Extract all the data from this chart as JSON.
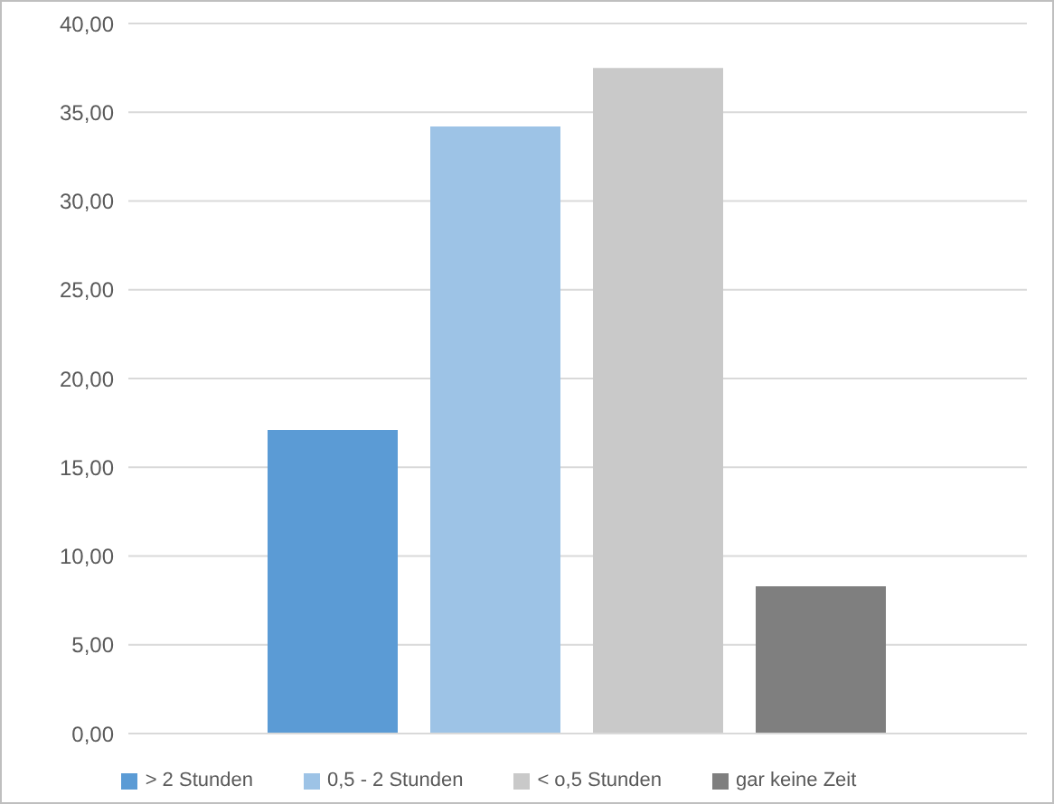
{
  "chart_data": {
    "type": "bar",
    "categories": [
      null
    ],
    "series": [
      {
        "name": "> 2 Stunden",
        "color": "#5b9bd5",
        "values": [
          17.1
        ]
      },
      {
        "name": "0,5 - 2 Stunden",
        "color": "#9dc3e6",
        "values": [
          34.2
        ]
      },
      {
        "name": "< o,5 Stunden",
        "color": "#c9c9c9",
        "values": [
          37.5
        ]
      },
      {
        "name": "gar keine Zeit",
        "color": "#7f7f7f",
        "values": [
          8.3
        ]
      }
    ],
    "ylim": [
      0,
      40
    ],
    "yticks": [
      {
        "value": 0,
        "label": "0,00"
      },
      {
        "value": 5,
        "label": "5,00"
      },
      {
        "value": 10,
        "label": "10,00"
      },
      {
        "value": 15,
        "label": "15,00"
      },
      {
        "value": 20,
        "label": "20,00"
      },
      {
        "value": 25,
        "label": "25,00"
      },
      {
        "value": 30,
        "label": "30,00"
      },
      {
        "value": 35,
        "label": "35,00"
      },
      {
        "value": 40,
        "label": "40,00"
      }
    ],
    "grid": "y",
    "legend": "bottom"
  }
}
